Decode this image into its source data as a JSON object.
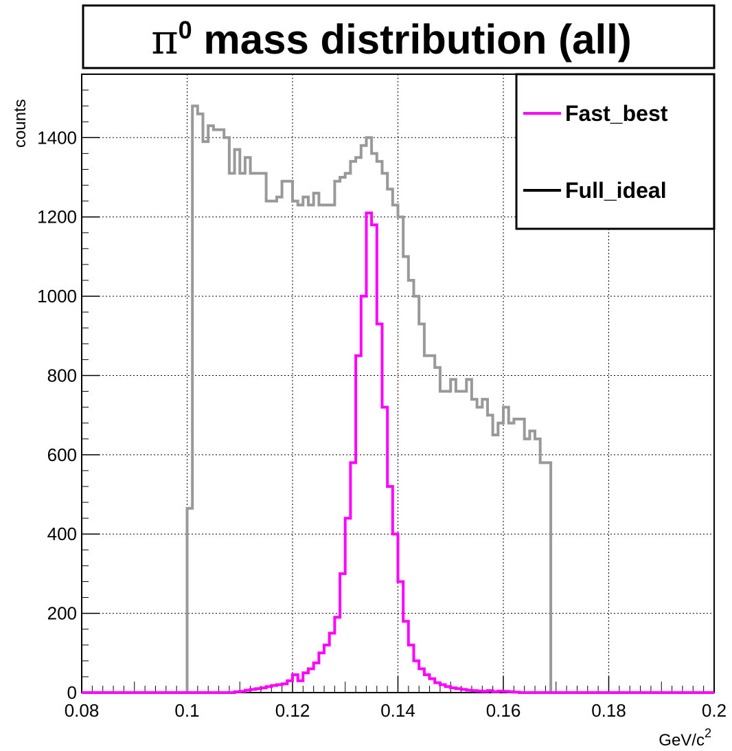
{
  "chart_data": {
    "type": "line",
    "title_prefix": "π",
    "title_sup": "0",
    "title_rest": " mass distribution (all)",
    "xlabel": "GeV/c",
    "xlabel_sup": "2",
    "ylabel": "counts",
    "xlim": [
      0.08,
      0.2
    ],
    "ylim": [
      0,
      1560
    ],
    "x_ticks": [
      "0.08",
      "0.1",
      "0.12",
      "0.14",
      "0.16",
      "0.18",
      "0.2"
    ],
    "y_ticks": [
      "0",
      "200",
      "400",
      "600",
      "800",
      "1000",
      "1200",
      "1400"
    ],
    "grid": true,
    "legend_position": "top-right",
    "legend": [
      {
        "label": "Fast_best",
        "color": "#ff00ff"
      },
      {
        "label": "Full_ideal",
        "color": "#000000"
      }
    ],
    "series": [
      {
        "color": "#999999",
        "bin_edges": [
          0.1,
          0.101,
          0.102,
          0.103,
          0.104,
          0.105,
          0.106,
          0.107,
          0.108,
          0.109,
          0.11,
          0.111,
          0.112,
          0.113,
          0.114,
          0.115,
          0.116,
          0.117,
          0.118,
          0.119,
          0.12,
          0.121,
          0.122,
          0.123,
          0.124,
          0.125,
          0.126,
          0.127,
          0.128,
          0.129,
          0.13,
          0.131,
          0.132,
          0.133,
          0.134,
          0.135,
          0.136,
          0.137,
          0.138,
          0.139,
          0.14,
          0.141,
          0.142,
          0.143,
          0.144,
          0.145,
          0.146,
          0.147,
          0.148,
          0.149,
          0.15,
          0.151,
          0.152,
          0.153,
          0.154,
          0.155,
          0.156,
          0.157,
          0.158,
          0.159,
          0.16,
          0.161,
          0.162,
          0.163,
          0.164,
          0.165,
          0.166,
          0.167,
          0.168,
          0.169
        ],
        "values": [
          465,
          1480,
          1460,
          1390,
          1430,
          1420,
          1420,
          1400,
          1310,
          1370,
          1310,
          1350,
          1310,
          1310,
          1310,
          1240,
          1240,
          1250,
          1290,
          1290,
          1240,
          1230,
          1250,
          1230,
          1260,
          1230,
          1230,
          1230,
          1290,
          1300,
          1310,
          1340,
          1350,
          1380,
          1400,
          1360,
          1340,
          1310,
          1270,
          1230,
          1200,
          1100,
          1040,
          1000,
          930,
          850,
          850,
          820,
          760,
          760,
          790,
          760,
          760,
          790,
          740,
          720,
          740,
          700,
          650,
          680,
          720,
          680,
          690,
          690,
          640,
          660,
          640,
          580,
          580
        ]
      },
      {
        "name": "Fast_best",
        "color": "#ff00ff",
        "bin_edges": [
          0.08,
          0.109,
          0.11,
          0.111,
          0.112,
          0.113,
          0.114,
          0.115,
          0.116,
          0.117,
          0.118,
          0.119,
          0.12,
          0.121,
          0.122,
          0.123,
          0.124,
          0.125,
          0.126,
          0.127,
          0.128,
          0.129,
          0.13,
          0.131,
          0.132,
          0.133,
          0.134,
          0.135,
          0.136,
          0.137,
          0.138,
          0.139,
          0.14,
          0.141,
          0.142,
          0.143,
          0.144,
          0.145,
          0.146,
          0.147,
          0.148,
          0.149,
          0.15,
          0.151,
          0.152,
          0.153,
          0.154,
          0.155,
          0.156,
          0.157,
          0.158,
          0.159,
          0.16,
          0.161,
          0.162,
          0.163,
          0.2
        ],
        "values": [
          0,
          2,
          3,
          6,
          8,
          10,
          12,
          15,
          18,
          20,
          22,
          30,
          45,
          30,
          50,
          60,
          75,
          100,
          120,
          150,
          190,
          300,
          440,
          580,
          850,
          1000,
          1210,
          1180,
          930,
          720,
          520,
          400,
          280,
          180,
          120,
          80,
          60,
          45,
          35,
          25,
          20,
          15,
          12,
          10,
          8,
          6,
          5,
          4,
          3,
          5,
          2,
          4,
          3,
          2,
          1,
          0
        ]
      }
    ]
  }
}
